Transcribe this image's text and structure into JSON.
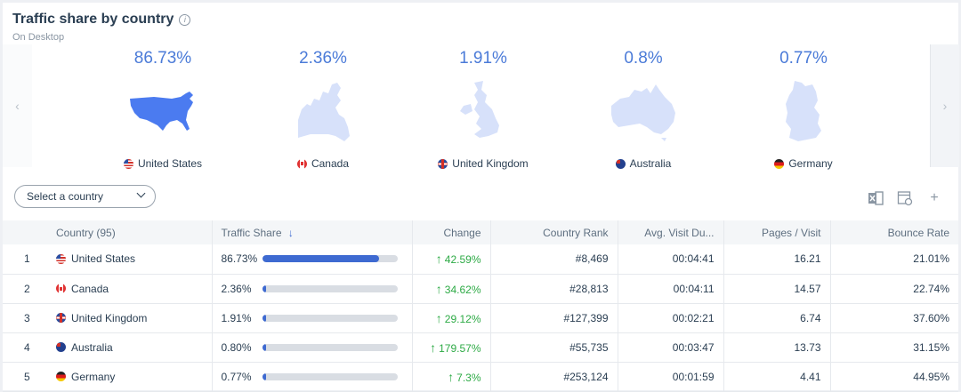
{
  "header": {
    "title": "Traffic share by country",
    "info_icon": "i",
    "subtitle": "On Desktop"
  },
  "carousel": {
    "prev_icon": "‹",
    "next_icon": "›",
    "tiles": [
      {
        "pct": "86.73%",
        "name": "United States",
        "flag": "us",
        "map_color": "#4b7bf0"
      },
      {
        "pct": "2.36%",
        "name": "Canada",
        "flag": "ca",
        "map_color": "#d7e1fa"
      },
      {
        "pct": "1.91%",
        "name": "United Kingdom",
        "flag": "gb",
        "map_color": "#d7e1fa"
      },
      {
        "pct": "0.8%",
        "name": "Australia",
        "flag": "au",
        "map_color": "#d7e1fa"
      },
      {
        "pct": "0.77%",
        "name": "Germany",
        "flag": "de",
        "map_color": "#d7e1fa"
      }
    ]
  },
  "selector": {
    "label": "Select a country"
  },
  "toolbar": {
    "excel_icon": "excel-export-icon",
    "settings_icon": "column-settings-icon",
    "add_icon": "+"
  },
  "table": {
    "headers": {
      "country": "Country (95)",
      "share": "Traffic Share",
      "sort_arrow": "↓",
      "change": "Change",
      "rank": "Country Rank",
      "duration": "Avg. Visit Du...",
      "pages": "Pages / Visit",
      "bounce": "Bounce Rate"
    },
    "rows": [
      {
        "num": "1",
        "country": "United States",
        "flag": "us",
        "share": "86.73%",
        "share_fraction": 0.8673,
        "change": "42.59%",
        "rank": "#8,469",
        "duration": "00:04:41",
        "pages": "16.21",
        "bounce": "21.01%"
      },
      {
        "num": "2",
        "country": "Canada",
        "flag": "ca",
        "share": "2.36%",
        "share_fraction": 0.0236,
        "change": "34.62%",
        "rank": "#28,813",
        "duration": "00:04:11",
        "pages": "14.57",
        "bounce": "22.74%"
      },
      {
        "num": "3",
        "country": "United Kingdom",
        "flag": "gb",
        "share": "1.91%",
        "share_fraction": 0.0191,
        "change": "29.12%",
        "rank": "#127,399",
        "duration": "00:02:21",
        "pages": "6.74",
        "bounce": "37.60%"
      },
      {
        "num": "4",
        "country": "Australia",
        "flag": "au",
        "share": "0.80%",
        "share_fraction": 0.008,
        "change": "179.57%",
        "rank": "#55,735",
        "duration": "00:03:47",
        "pages": "13.73",
        "bounce": "31.15%"
      },
      {
        "num": "5",
        "country": "Germany",
        "flag": "de",
        "share": "0.77%",
        "share_fraction": 0.0077,
        "change": "7.3%",
        "rank": "#253,124",
        "duration": "00:01:59",
        "pages": "4.41",
        "bounce": "44.95%"
      }
    ]
  }
}
